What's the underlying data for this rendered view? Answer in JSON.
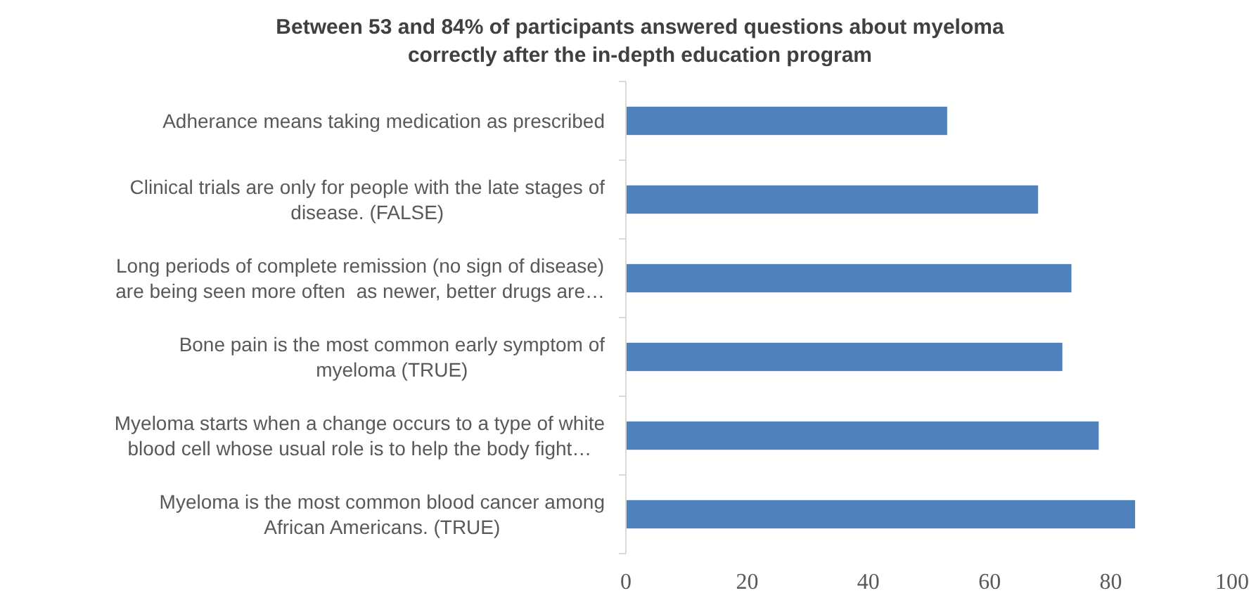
{
  "chart_data": {
    "type": "bar",
    "orientation": "horizontal",
    "title": "Between 53 and 84% of participants answered questions about myeloma correctly after the in-depth education program",
    "categories": [
      "Adherance means taking medication as prescribed",
      "Clinical trials are only for people with the late stages of disease. (FALSE)",
      "Long periods of complete remission (no sign of disease) are being seen more often  as newer, better drugs are…",
      "Bone pain is the most common early symptom of myeloma (TRUE)",
      "Myeloma starts when a change occurs to a type of white blood cell whose usual role is to help the body fight…",
      "Myeloma is the most common blood cancer among African Americans. (TRUE)"
    ],
    "values": [
      53,
      68,
      73.5,
      72,
      78,
      84
    ],
    "color": "#4f81bd",
    "xlim": [
      0,
      100
    ],
    "xticks": [
      0,
      20,
      40,
      60,
      80,
      100
    ],
    "grid": false
  }
}
